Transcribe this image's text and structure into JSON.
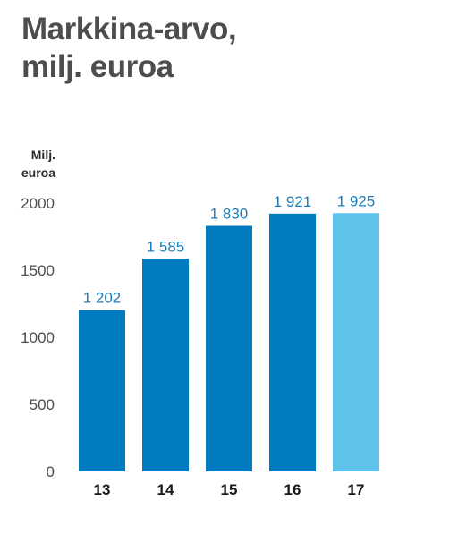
{
  "title_lines": [
    "Markkina-arvo,",
    "milj. euroa"
  ],
  "unit_lines": [
    "Milj.",
    "euroa"
  ],
  "colors": {
    "bar": "#007bc0",
    "highlight": "#5ec2ea",
    "label": "#1a7fb8",
    "text": "#4d4d4f"
  },
  "chart_data": {
    "type": "bar",
    "title": "Markkina-arvo, milj. euroa",
    "ylabel": "Milj. euroa",
    "xlabel": "",
    "categories": [
      "13",
      "14",
      "15",
      "16",
      "17"
    ],
    "values": [
      1202,
      1585,
      1830,
      1921,
      1925
    ],
    "value_labels": [
      "1 202",
      "1 585",
      "1 830",
      "1 921",
      "1 925"
    ],
    "highlight_index": 4,
    "ylim": [
      0,
      2000
    ],
    "yticks": [
      0,
      500,
      1000,
      1500,
      2000
    ],
    "ytick_labels": [
      "0",
      "500",
      "1000",
      "1500",
      "2000"
    ],
    "grid": false,
    "legend": "none"
  }
}
